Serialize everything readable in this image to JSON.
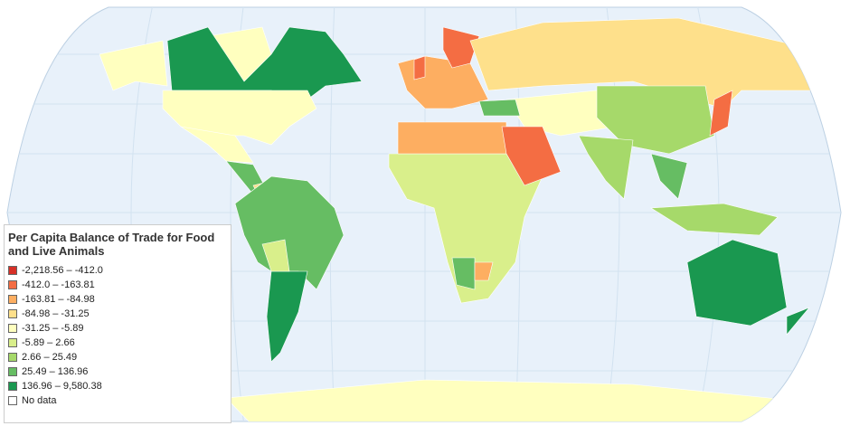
{
  "legend": {
    "title": "Per Capita Balance of Trade for Food and Live Animals",
    "items": [
      {
        "label": "-2,218.56 – -412.0",
        "color": "#d73027"
      },
      {
        "label": "-412.0 – -163.81",
        "color": "#f46d43"
      },
      {
        "label": "-163.81 – -84.98",
        "color": "#fdae61"
      },
      {
        "label": "-84.98 – -31.25",
        "color": "#fee08b"
      },
      {
        "label": "-31.25 – -5.89",
        "color": "#ffffbf"
      },
      {
        "label": "-5.89 – 2.66",
        "color": "#d9ef8b"
      },
      {
        "label": "2.66 – 25.49",
        "color": "#a6d96a"
      },
      {
        "label": "25.49 – 136.96",
        "color": "#66bd63"
      },
      {
        "label": "136.96 – 9,580.38",
        "color": "#1a9850"
      },
      {
        "label": "No data",
        "color": "#ffffff"
      }
    ]
  }
}
